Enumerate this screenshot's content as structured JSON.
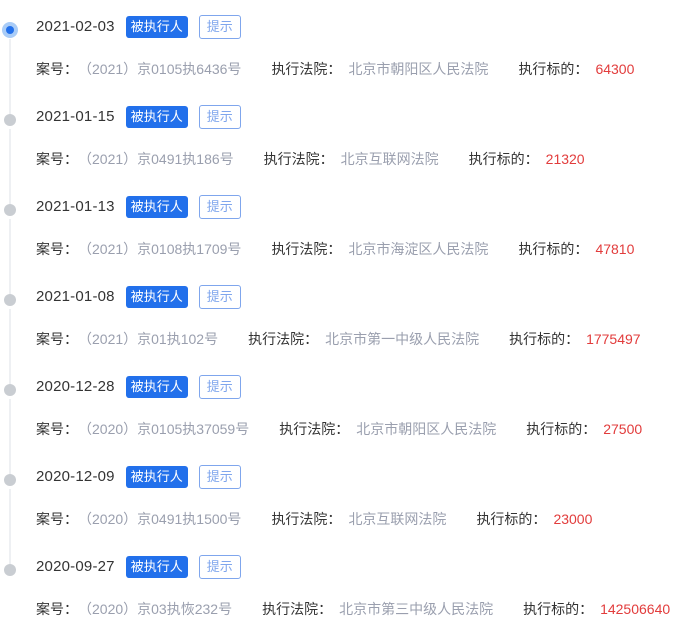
{
  "colors": {
    "accent_blue": "#2270eb",
    "light_blue": "#7fa6ed",
    "amount_red": "#e23c3c",
    "value_gray": "#9a9fae",
    "label_dark": "#333333",
    "timeline_dot_gray": "#c9cdd2",
    "timeline_line": "#eef0f3"
  },
  "labels": {
    "badge": "被执行人",
    "hint": "提示",
    "case_no": "案号：",
    "court": "执行法院：",
    "target": "执行标的："
  },
  "entries": [
    {
      "date": "2021-02-03",
      "case_no": "（2021）京0105执6436号",
      "court": "北京市朝阳区人民法院",
      "amount": "64300",
      "active": true
    },
    {
      "date": "2021-01-15",
      "case_no": "（2021）京0491执186号",
      "court": "北京互联网法院",
      "amount": "21320",
      "active": false
    },
    {
      "date": "2021-01-13",
      "case_no": "（2021）京0108执1709号",
      "court": "北京市海淀区人民法院",
      "amount": "47810",
      "active": false
    },
    {
      "date": "2021-01-08",
      "case_no": "（2021）京01执102号",
      "court": "北京市第一中级人民法院",
      "amount": "1775497",
      "active": false
    },
    {
      "date": "2020-12-28",
      "case_no": "（2020）京0105执37059号",
      "court": "北京市朝阳区人民法院",
      "amount": "27500",
      "active": false
    },
    {
      "date": "2020-12-09",
      "case_no": "（2020）京0491执1500号",
      "court": "北京互联网法院",
      "amount": "23000",
      "active": false
    },
    {
      "date": "2020-09-27",
      "case_no": "（2020）京03执恢232号",
      "court": "北京市第三中级人民法院",
      "amount": "142506640",
      "active": false
    }
  ]
}
